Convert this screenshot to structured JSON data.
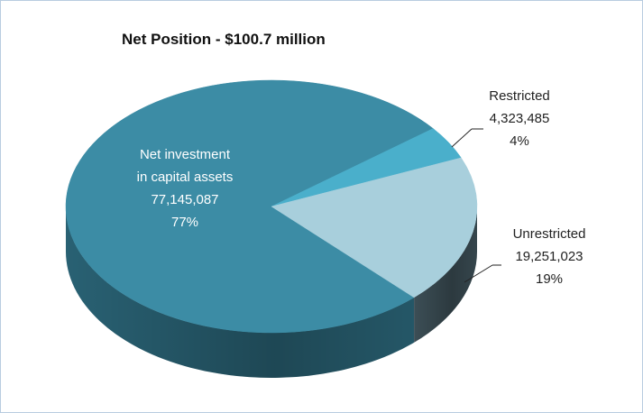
{
  "chart_data": {
    "type": "pie",
    "title": "Net Position - $100.7 million",
    "categories": [
      "Net investment in capital assets",
      "Restricted",
      "Unrestricted"
    ],
    "values": [
      77145087,
      4323485,
      19251023
    ],
    "value_labels": [
      "77,145,087",
      "4,323,485",
      "19,251,023"
    ],
    "percent_labels": [
      "77%",
      "4%",
      "19%"
    ],
    "colors": [
      "#3c8ca5",
      "#4aafcb",
      "#a8cfdc"
    ],
    "side_colors": [
      "#2b6679",
      "#2f7f96",
      "#3f525a"
    ]
  }
}
